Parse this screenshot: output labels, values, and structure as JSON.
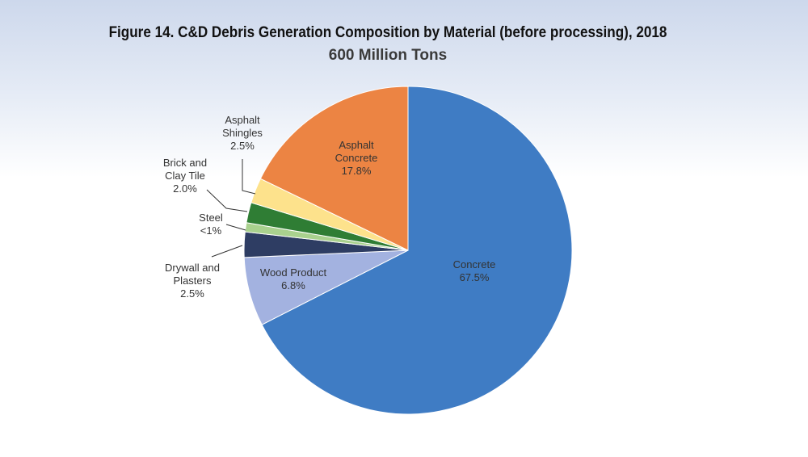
{
  "chart_data": {
    "type": "pie",
    "title": "Figure 14. C&D Debris Generation Composition by Material (before processing), 2018",
    "subtitle": "600 Million Tons",
    "categories": [
      "Concrete",
      "Wood Product",
      "Drywall and Plasters",
      "Steel",
      "Brick and Clay Tile",
      "Asphalt Shingles",
      "Asphalt Concrete"
    ],
    "values": [
      67.5,
      6.8,
      2.5,
      0.9,
      2.0,
      2.5,
      17.8
    ],
    "value_labels": [
      "67.5%",
      "6.8%",
      "2.5%",
      "<1%",
      "2.0%",
      "2.5%",
      "17.8%"
    ],
    "colors": [
      "#3f7cc4",
      "#a3b2e0",
      "#2e3d63",
      "#a9d18e",
      "#2f7d34",
      "#fde28c",
      "#ec8443"
    ]
  }
}
